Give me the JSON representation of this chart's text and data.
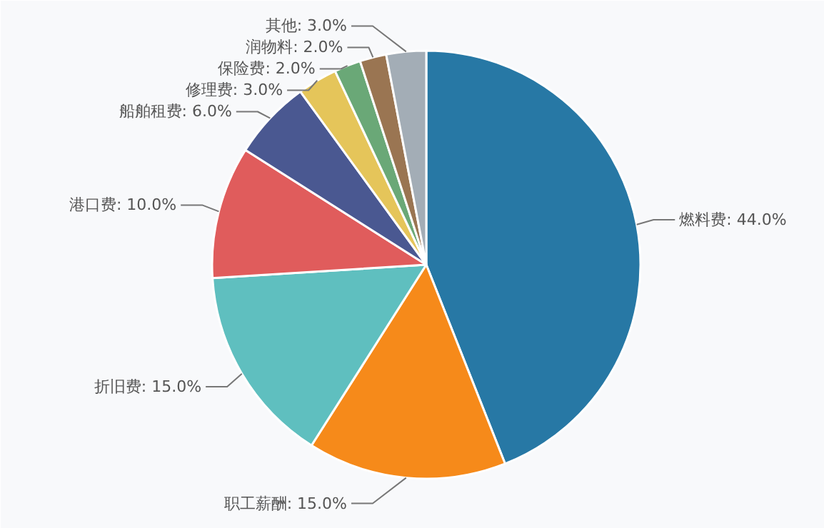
{
  "chart_data": {
    "type": "pie",
    "categories": [
      "燃料费",
      "职工薪酬",
      "折旧费",
      "港口费",
      "船舶租费",
      "修理费",
      "保险费",
      "润物料",
      "其他"
    ],
    "values": [
      44.0,
      15.0,
      15.0,
      10.0,
      6.0,
      3.0,
      2.0,
      2.0,
      3.0
    ],
    "colors": [
      "#2778a5",
      "#f68a1a",
      "#5fbfbf",
      "#e05c5c",
      "#4a5891",
      "#e5c55a",
      "#6aa877",
      "#9a7552",
      "#a3adb6"
    ],
    "value_labels": [
      "44.0%",
      "15.0%",
      "15.0%",
      "10.0%",
      "6.0%",
      "3.0%",
      "2.0%",
      "2.0%",
      "3.0%"
    ]
  }
}
